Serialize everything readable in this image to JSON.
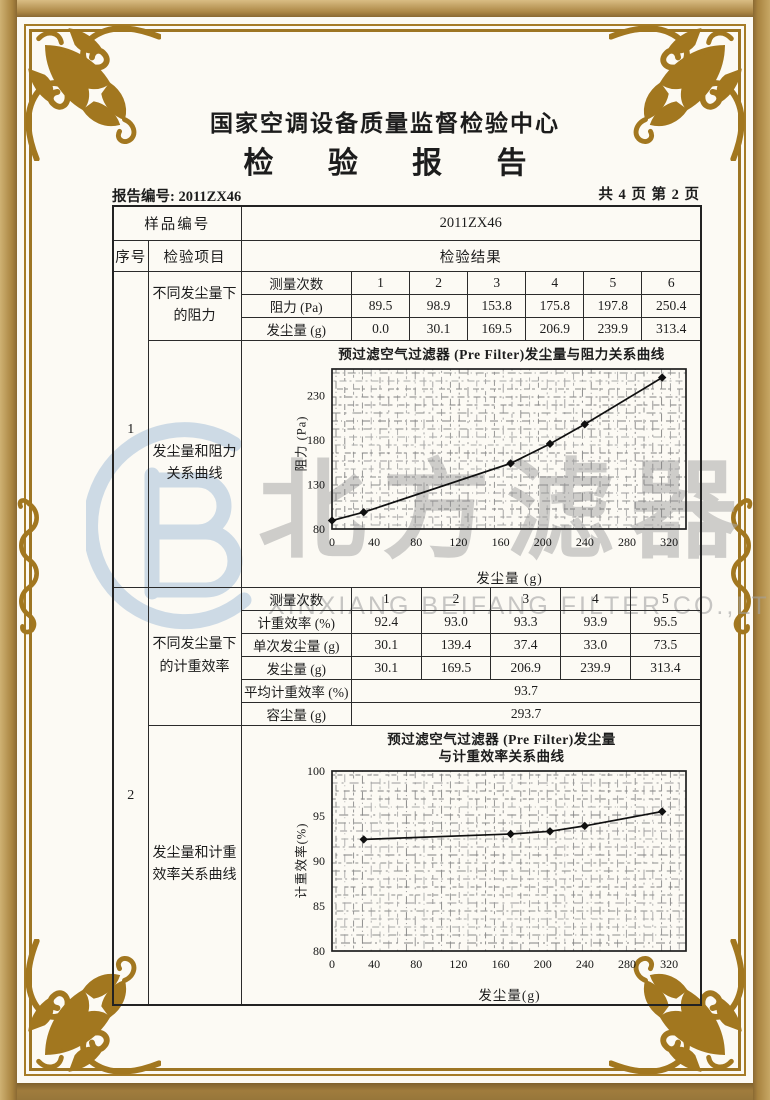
{
  "header": {
    "org": "国家空调设备质量监督检验中心",
    "title": "检 验 报 告"
  },
  "meta": {
    "report_no": "报告编号: 2011ZX46",
    "page_info": "共 4 页 第 2 页"
  },
  "sample": {
    "label": "样品编号",
    "value": "2011ZX46"
  },
  "columns": {
    "no": "序号",
    "item": "检验项目",
    "result": "检验结果"
  },
  "section1": {
    "no": "1",
    "item_table": "不同发尘量下的阻力",
    "item_chart": "发尘量和阻力关系曲线",
    "measure_label": "测量次数",
    "measure_nos": [
      "1",
      "2",
      "3",
      "4",
      "5",
      "6"
    ],
    "rows": [
      {
        "label": "阻力 (Pa)",
        "values": [
          "89.5",
          "98.9",
          "153.8",
          "175.8",
          "197.8",
          "250.4"
        ]
      },
      {
        "label": "发尘量 (g)",
        "values": [
          "0.0",
          "30.1",
          "169.5",
          "206.9",
          "239.9",
          "313.4"
        ]
      }
    ]
  },
  "section2": {
    "no": "2",
    "item_table": "不同发尘量下的计重效率",
    "item_chart": "发尘量和计重效率关系曲线",
    "measure_label": "测量次数",
    "measure_nos": [
      "1",
      "2",
      "3",
      "4",
      "5"
    ],
    "rows": [
      {
        "label": "计重效率 (%)",
        "values": [
          "92.4",
          "93.0",
          "93.3",
          "93.9",
          "95.5"
        ]
      },
      {
        "label": "单次发尘量 (g)",
        "values": [
          "30.1",
          "139.4",
          "37.4",
          "33.0",
          "73.5"
        ]
      },
      {
        "label": "发尘量 (g)",
        "values": [
          "30.1",
          "169.5",
          "206.9",
          "239.9",
          "313.4"
        ]
      }
    ],
    "summary": [
      {
        "label": "平均计重效率 (%)",
        "value": "93.7"
      },
      {
        "label": "容尘量 (g)",
        "value": "293.7"
      }
    ]
  },
  "watermark": {
    "text": "北方滤器",
    "subtext": "XINXIANG BEIFANG FILTER CO.,LTD"
  },
  "chart_data": [
    {
      "type": "line",
      "title": "预过滤空气过滤器 (Pre Filter)发尘量与阻力关系曲线",
      "xlabel": "发尘量 (g)",
      "ylabel": "阻力 (Pa)",
      "xlim": [
        0,
        336
      ],
      "ylim": [
        80,
        260
      ],
      "xticks": [
        0,
        40,
        80,
        120,
        160,
        200,
        240,
        280,
        320
      ],
      "yticks": [
        80,
        130,
        180,
        230
      ],
      "grid": true,
      "legend": false,
      "x": [
        0.0,
        30.1,
        169.5,
        206.9,
        239.9,
        313.4
      ],
      "y": [
        89.5,
        98.9,
        153.8,
        175.8,
        197.8,
        250.4
      ]
    },
    {
      "type": "line",
      "title": "预过滤空气过滤器 (Pre Filter)发尘量",
      "title2": "与计重效率关系曲线",
      "xlabel": "发尘量(g)",
      "ylabel": "计重效率(%)",
      "xlim": [
        0,
        336
      ],
      "ylim": [
        80,
        100
      ],
      "xticks": [
        0,
        40,
        80,
        120,
        160,
        200,
        240,
        280,
        320
      ],
      "yticks": [
        80,
        85,
        90,
        95,
        100
      ],
      "grid": true,
      "legend": false,
      "x": [
        30.1,
        169.5,
        206.9,
        239.9,
        313.4
      ],
      "y": [
        92.4,
        93.0,
        93.3,
        93.9,
        95.5
      ]
    }
  ]
}
